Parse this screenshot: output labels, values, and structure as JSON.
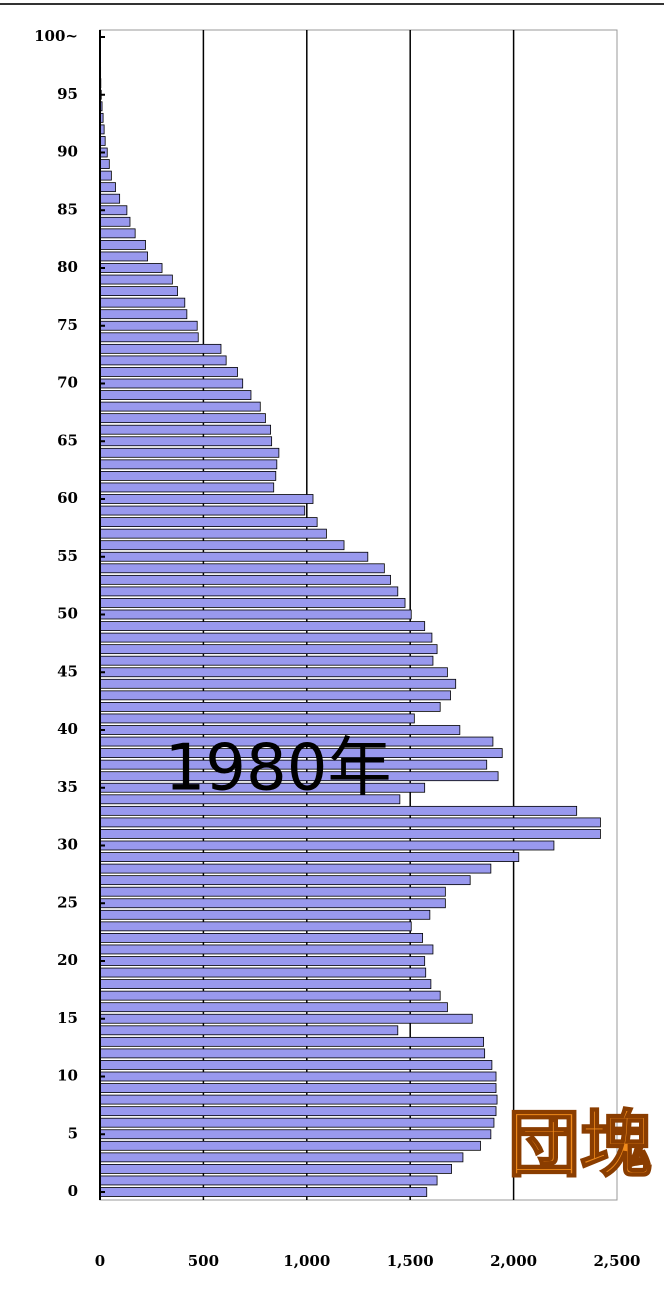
{
  "chart_data": {
    "type": "barh",
    "categories": [
      "0",
      null,
      null,
      null,
      null,
      "5",
      null,
      null,
      null,
      null,
      "10",
      null,
      null,
      null,
      null,
      "15",
      null,
      null,
      null,
      null,
      "20",
      null,
      null,
      null,
      null,
      "25",
      null,
      null,
      null,
      null,
      "30",
      null,
      null,
      null,
      null,
      "35",
      null,
      null,
      null,
      null,
      "40",
      null,
      null,
      null,
      null,
      "45",
      null,
      null,
      null,
      null,
      "50",
      null,
      null,
      null,
      null,
      "55",
      null,
      null,
      null,
      null,
      "60",
      null,
      null,
      null,
      null,
      "65",
      null,
      null,
      null,
      null,
      "70",
      null,
      null,
      null,
      null,
      "75",
      null,
      null,
      null,
      null,
      "80",
      null,
      null,
      null,
      null,
      "85",
      null,
      null,
      null,
      null,
      "90",
      null,
      null,
      null,
      null,
      "95",
      null,
      null,
      null,
      null,
      "100~"
    ],
    "values": [
      1580,
      1630,
      1700,
      1755,
      1840,
      1890,
      1905,
      1915,
      1920,
      1915,
      1915,
      1895,
      1860,
      1855,
      1440,
      1800,
      1680,
      1645,
      1600,
      1575,
      1570,
      1610,
      1560,
      1505,
      1595,
      1670,
      1670,
      1790,
      1890,
      2025,
      2195,
      2420,
      2420,
      2305,
      1450,
      1570,
      1925,
      1870,
      1945,
      1900,
      1740,
      1520,
      1645,
      1695,
      1720,
      1680,
      1610,
      1630,
      1605,
      1570,
      1505,
      1475,
      1440,
      1405,
      1375,
      1295,
      1180,
      1095,
      1050,
      990,
      1030,
      840,
      850,
      855,
      865,
      830,
      825,
      800,
      775,
      730,
      690,
      665,
      610,
      585,
      475,
      470,
      420,
      410,
      375,
      350,
      300,
      230,
      220,
      170,
      145,
      130,
      95,
      75,
      55,
      45,
      35,
      25,
      20,
      15,
      10,
      6,
      4,
      3,
      2,
      1,
      1
    ],
    "color": "#9999ee",
    "xlim": [
      0,
      2500
    ],
    "xticks": [
      0,
      500,
      {
        "value": 1000,
        "label": "1,000"
      },
      {
        "value": 1500,
        "label": "1,500"
      },
      {
        "value": 2000,
        "label": "2,000"
      },
      {
        "value": 2500,
        "label": "2,500"
      }
    ],
    "grid": true,
    "annotations": [
      "1980年",
      "団塊"
    ]
  }
}
